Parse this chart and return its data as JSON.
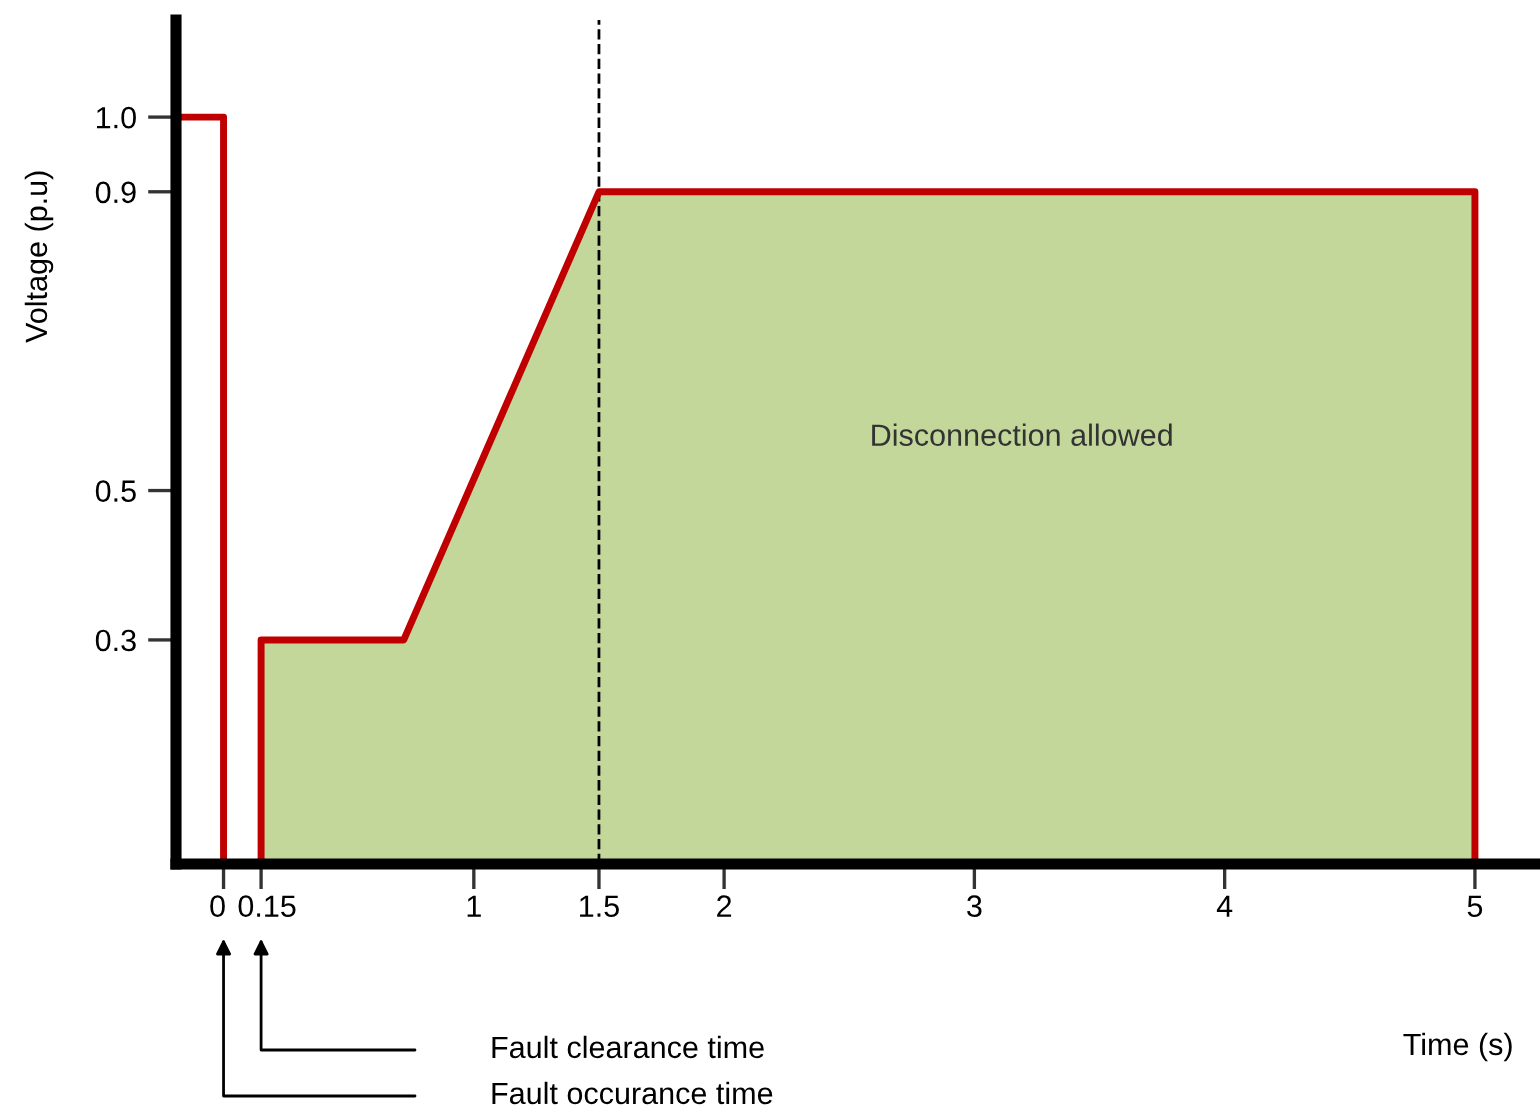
{
  "chart_data": {
    "type": "line",
    "xlabel": "Time (s)",
    "ylabel": "Voltage (p.u)",
    "series": [
      {
        "type": "area",
        "color": "#c4d79b",
        "x": [
          0.15,
          0.15,
          0.72,
          1.5,
          5,
          5
        ],
        "values": [
          0,
          0.3,
          0.3,
          0.9,
          0.9,
          0
        ]
      },
      {
        "color": "#c00000",
        "x": [
          -0.19,
          0,
          0,
          0.15,
          0.15,
          0.72,
          1.5,
          5,
          5
        ],
        "values": [
          1,
          1,
          0,
          0,
          0.3,
          0.3,
          0.9,
          0.9,
          0
        ]
      }
    ],
    "xlim": [
      -0.19,
      5.26
    ],
    "ylim": [
      0,
      1.13
    ],
    "xticks": [
      0,
      0.15,
      1,
      1.5,
      2,
      3,
      4,
      5
    ],
    "yticks": [
      0.3,
      0.5,
      0.9,
      {
        "value": 1,
        "label": "1.0"
      }
    ],
    "ref_lines": [
      {
        "axis": "x",
        "value": 1.5,
        "color": "#000000",
        "line_style": "dashed"
      }
    ],
    "annotations": [
      "Disconnection allowed",
      "Fault clearance time",
      "Fault occurance time"
    ],
    "grid": false,
    "legend": false
  }
}
